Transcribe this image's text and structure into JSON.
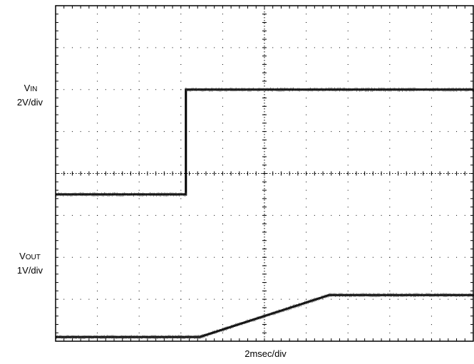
{
  "chart_data": {
    "type": "line",
    "title": "",
    "xlabel": "2msec/div",
    "x_divisions": 10,
    "y_divisions": 8,
    "grid": true,
    "series": [
      {
        "label_main": "V",
        "label_sub": "IN",
        "scale": "2V/div",
        "color": "#000000",
        "points_div": [
          [
            0.0,
            3.5
          ],
          [
            3.12,
            3.5
          ],
          [
            3.12,
            6.0
          ],
          [
            10.0,
            6.0
          ]
        ]
      },
      {
        "label_main": "V",
        "label_sub": "OUT",
        "scale": "1V/div",
        "color": "#000000",
        "points_div": [
          [
            0.0,
            0.1
          ],
          [
            3.45,
            0.1
          ],
          [
            6.55,
            1.1
          ],
          [
            10.0,
            1.1
          ]
        ]
      }
    ]
  }
}
